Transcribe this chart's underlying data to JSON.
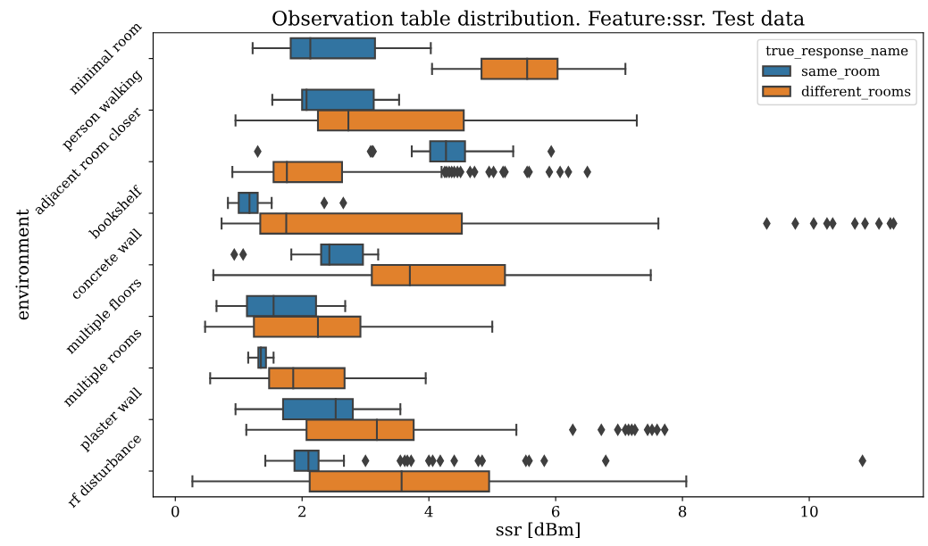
{
  "chart_data": {
    "type": "box",
    "orientation": "horizontal",
    "title": "Observation table distribution. Feature:ssr. Test data",
    "xlabel": "ssr [dBm]",
    "ylabel": "environment",
    "legend_title": "true_response_name",
    "legend": "top right",
    "grid": false,
    "marker": "diamond",
    "categories": [
      "minimal room",
      "person walking",
      "adjacent room closer",
      "bookshelf",
      "concrete wall",
      "multiple floors",
      "multiple rooms",
      "plaster wall",
      "rf disturbance"
    ],
    "xlim": [
      -0.35,
      11.8
    ],
    "xticks": [
      0,
      2,
      4,
      6,
      8,
      10
    ],
    "series": [
      {
        "name": "same_room",
        "color": "#3274a1",
        "boxes": [
          {
            "low": 1.22,
            "q1": 1.82,
            "median": 2.13,
            "q3": 3.15,
            "high": 4.03
          },
          {
            "low": 1.53,
            "q1": 2.0,
            "median": 2.07,
            "q3": 3.13,
            "high": 3.53
          },
          {
            "low": 3.73,
            "q1": 4.02,
            "median": 4.27,
            "q3": 4.57,
            "high": 5.33,
            "outliers": [
              1.3,
              3.08,
              3.1,
              3.12,
              5.93
            ]
          },
          {
            "low": 0.83,
            "q1": 1.0,
            "median": 1.17,
            "q3": 1.3,
            "high": 1.52,
            "outliers": [
              2.35,
              2.65
            ]
          },
          {
            "low": 1.83,
            "q1": 2.3,
            "median": 2.43,
            "q3": 2.96,
            "high": 3.2,
            "outliers": [
              0.93,
              1.07
            ]
          },
          {
            "low": 0.65,
            "q1": 1.13,
            "median": 1.55,
            "q3": 2.22,
            "high": 2.68
          },
          {
            "low": 1.15,
            "q1": 1.31,
            "median": 1.35,
            "q3": 1.43,
            "high": 1.55
          },
          {
            "low": 0.95,
            "q1": 1.7,
            "median": 2.53,
            "q3": 2.8,
            "high": 3.55
          },
          {
            "low": 1.42,
            "q1": 1.88,
            "median": 2.1,
            "q3": 2.26,
            "high": 2.66,
            "outliers": [
              3.0,
              3.55,
              3.62,
              3.66,
              3.72,
              4.0,
              4.06,
              4.18,
              4.4,
              4.78,
              4.84,
              5.53,
              5.58,
              5.82,
              6.79,
              10.84
            ]
          }
        ]
      },
      {
        "name": "different_rooms",
        "color": "#e1812c",
        "boxes": [
          {
            "low": 4.05,
            "q1": 4.83,
            "median": 5.55,
            "q3": 6.03,
            "high": 7.1
          },
          {
            "low": 0.95,
            "q1": 2.25,
            "median": 2.73,
            "q3": 4.55,
            "high": 7.28
          },
          {
            "low": 0.9,
            "q1": 1.55,
            "median": 1.76,
            "q3": 2.63,
            "high": 4.2,
            "outliers": [
              4.25,
              4.28,
              4.32,
              4.36,
              4.4,
              4.45,
              4.5,
              4.65,
              4.72,
              4.95,
              5.02,
              5.17,
              5.2,
              5.55,
              5.58,
              5.9,
              6.07,
              6.2,
              6.5
            ]
          },
          {
            "low": 0.73,
            "q1": 1.34,
            "median": 1.75,
            "q3": 4.52,
            "high": 7.62,
            "outliers": [
              9.33,
              9.78,
              10.07,
              10.28,
              10.37,
              10.72,
              10.88,
              11.1,
              11.28,
              11.33
            ]
          },
          {
            "low": 0.6,
            "q1": 3.1,
            "median": 3.7,
            "q3": 5.2,
            "high": 7.5
          },
          {
            "low": 0.47,
            "q1": 1.24,
            "median": 2.25,
            "q3": 2.92,
            "high": 5.0
          },
          {
            "low": 0.55,
            "q1": 1.48,
            "median": 1.86,
            "q3": 2.67,
            "high": 3.95
          },
          {
            "low": 1.12,
            "q1": 2.07,
            "median": 3.18,
            "q3": 3.76,
            "high": 5.38,
            "outliers": [
              6.27,
              6.72,
              6.98,
              7.1,
              7.15,
              7.2,
              7.25,
              7.45,
              7.52,
              7.6,
              7.72
            ]
          },
          {
            "low": 0.27,
            "q1": 2.12,
            "median": 3.57,
            "q3": 4.95,
            "high": 8.06
          }
        ]
      }
    ]
  }
}
